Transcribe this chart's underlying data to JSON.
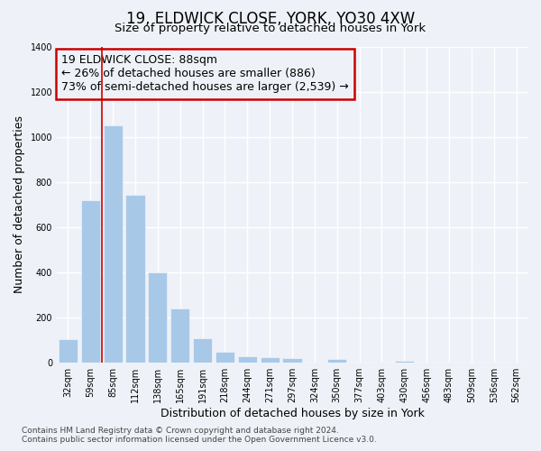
{
  "title": "19, ELDWICK CLOSE, YORK, YO30 4XW",
  "subtitle": "Size of property relative to detached houses in York",
  "xlabel": "Distribution of detached houses by size in York",
  "ylabel": "Number of detached properties",
  "categories": [
    "32sqm",
    "59sqm",
    "85sqm",
    "112sqm",
    "138sqm",
    "165sqm",
    "191sqm",
    "218sqm",
    "244sqm",
    "271sqm",
    "297sqm",
    "324sqm",
    "350sqm",
    "377sqm",
    "403sqm",
    "430sqm",
    "456sqm",
    "483sqm",
    "509sqm",
    "536sqm",
    "562sqm"
  ],
  "values": [
    105,
    720,
    1050,
    745,
    400,
    240,
    110,
    50,
    30,
    25,
    20,
    0,
    15,
    0,
    0,
    10,
    0,
    0,
    0,
    0,
    0
  ],
  "bar_color": "#a8c8e8",
  "annotation_box_text_line1": "19 ELDWICK CLOSE: 88sqm",
  "annotation_box_text_line2": "← 26% of detached houses are smaller (886)",
  "annotation_box_text_line3": "73% of semi-detached houses are larger (2,539) →",
  "annotation_box_color": "#cc0000",
  "vline_index": 2,
  "ylim": [
    0,
    1400
  ],
  "yticks": [
    0,
    200,
    400,
    600,
    800,
    1000,
    1200,
    1400
  ],
  "footer_line1": "Contains HM Land Registry data © Crown copyright and database right 2024.",
  "footer_line2": "Contains public sector information licensed under the Open Government Licence v3.0.",
  "background_color": "#eef2f8",
  "grid_color": "#ffffff",
  "title_fontsize": 12,
  "subtitle_fontsize": 9.5,
  "label_fontsize": 9,
  "tick_fontsize": 7,
  "annotation_fontsize": 9,
  "footer_fontsize": 6.5
}
